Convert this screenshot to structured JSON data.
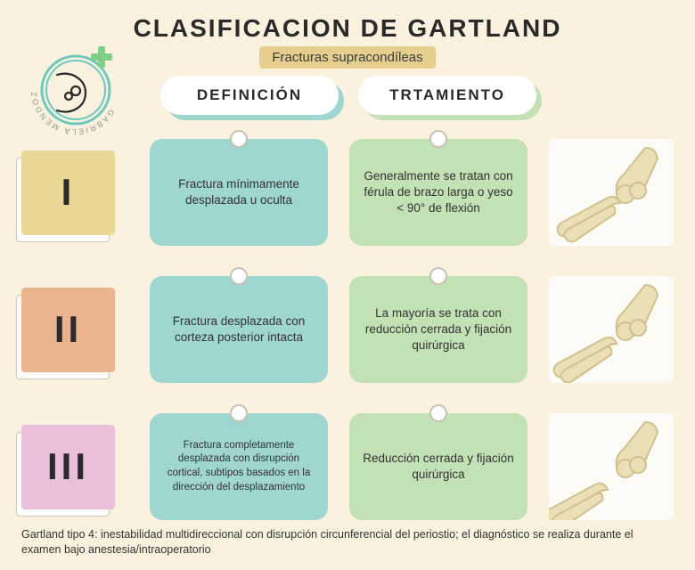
{
  "title": "CLASIFICACION DE GARTLAND",
  "subtitle": "Fracturas supracondíleas",
  "logo": {
    "author_text": "GABRIELA MENDOZA",
    "ring_color": "#6ec8bd",
    "cross_color": "#7fcf87",
    "bone_color": "#2a2a2a"
  },
  "headers": {
    "definition": {
      "label": "Definición",
      "shadow_color": "#9fd6d0"
    },
    "treatment": {
      "label": "Trtamiento",
      "shadow_color": "#c2e1b5"
    }
  },
  "colors": {
    "page_bg": "#faf2df",
    "subtitle_bg": "#e6cf8e",
    "card_def_bg": "#9fd6d0",
    "card_trt_bg": "#c2e1b5",
    "illus_bg": "#fdfbf6",
    "bone_fill": "#ebdfb6",
    "bone_stroke": "#cfc08e"
  },
  "rows": [
    {
      "numeral": "I",
      "sticky_color": "#e9d795",
      "definition": "Fractura mínimamente desplazada u oculta",
      "treatment": "Generalmente se tratan con férula de brazo larga o yeso < 90° de flexión",
      "def_small": false
    },
    {
      "numeral": "II",
      "sticky_color": "#e9b38d",
      "definition": "Fractura desplazada con corteza posterior intacta",
      "treatment": "La mayoría se trata con reducción cerrada y fijación quirúrgica",
      "def_small": false
    },
    {
      "numeral": "III",
      "sticky_color": "#e9bfd9",
      "definition": "Fractura completamente desplazada con disrupción cortical, subtipos basados en la dirección del desplazamiento",
      "treatment": "Reducción cerrada y fijación quirúrgica",
      "def_small": true
    }
  ],
  "footer": "Gartland tipo 4: inestabilidad multidireccional con disrupción circunferencial del periostio; el diagnóstico se realiza durante el examen bajo anestesia/intraoperatorio"
}
